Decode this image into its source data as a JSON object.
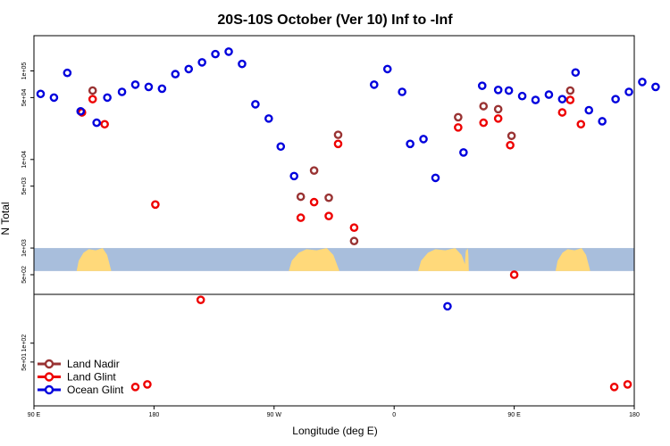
{
  "chart_data": {
    "type": "scatter",
    "title": "20S-10S October (Ver 10)   Inf to -Inf",
    "xlabel": "Longitude (deg E)",
    "ylabel": "N Total",
    "yscale": "log",
    "xlim": [
      90,
      540
    ],
    "x_ticks": [
      {
        "value": 90,
        "label": "90 E"
      },
      {
        "value": 180,
        "label": "180"
      },
      {
        "value": 270,
        "label": "90 W"
      },
      {
        "value": 360,
        "label": "0"
      },
      {
        "value": 450,
        "label": "90 E"
      },
      {
        "value": 540,
        "label": "180"
      }
    ],
    "upper_panel": {
      "ylim": [
        300,
        250000
      ],
      "y_ticks": [
        {
          "value": 500,
          "label": "5e+02"
        },
        {
          "value": 1000,
          "label": "1e+03"
        },
        {
          "value": 5000,
          "label": "5e+03"
        },
        {
          "value": 10000,
          "label": "1e+04"
        },
        {
          "value": 50000,
          "label": "5e+04"
        },
        {
          "value": 100000,
          "label": "1e+05"
        }
      ]
    },
    "lower_panel": {
      "ylim": [
        10,
        600
      ],
      "y_ticks": [
        {
          "value": 50,
          "label": "5e+01"
        },
        {
          "value": 100,
          "label": "1e+02"
        }
      ]
    },
    "land_mask_band": {
      "y_top": 1000,
      "y_bottom": 550,
      "ocean_color": "#a8bedc",
      "land_color": "#ffd97a"
    },
    "land_segments": [
      {
        "x_start": 122,
        "x_end": 148
      },
      {
        "x_start": 281,
        "x_end": 319
      },
      {
        "x_start": 378,
        "x_end": 415
      },
      {
        "x_start": 413,
        "x_end": 416
      },
      {
        "x_start": 481,
        "x_end": 507
      }
    ],
    "legend": {
      "placement": "bottom-left"
    },
    "series": [
      {
        "name": "Land Nadir",
        "color": "#993333",
        "upper": [
          {
            "x": 134,
            "y": 60000
          },
          {
            "x": 318,
            "y": 19000
          },
          {
            "x": 290,
            "y": 3800
          },
          {
            "x": 300,
            "y": 7500
          },
          {
            "x": 311,
            "y": 3700
          },
          {
            "x": 330,
            "y": 1200
          },
          {
            "x": 408,
            "y": 30000
          },
          {
            "x": 427,
            "y": 40000
          },
          {
            "x": 438,
            "y": 37000
          },
          {
            "x": 448,
            "y": 18500
          },
          {
            "x": 492,
            "y": 60000
          }
        ],
        "lower": []
      },
      {
        "name": "Land Glint",
        "color": "#ee0000",
        "upper": [
          {
            "x": 126,
            "y": 34000
          },
          {
            "x": 134,
            "y": 48000
          },
          {
            "x": 143,
            "y": 25000
          },
          {
            "x": 181,
            "y": 3100
          },
          {
            "x": 290,
            "y": 2200
          },
          {
            "x": 300,
            "y": 3300
          },
          {
            "x": 311,
            "y": 2300
          },
          {
            "x": 318,
            "y": 15000
          },
          {
            "x": 330,
            "y": 1700
          },
          {
            "x": 408,
            "y": 23000
          },
          {
            "x": 427,
            "y": 26000
          },
          {
            "x": 438,
            "y": 29000
          },
          {
            "x": 447,
            "y": 14500
          },
          {
            "x": 450,
            "y": 500
          },
          {
            "x": 215,
            "y": 260
          },
          {
            "x": 486,
            "y": 34000
          },
          {
            "x": 492,
            "y": 47000
          },
          {
            "x": 500,
            "y": 25000
          }
        ],
        "lower": [
          {
            "x": 166,
            "y": 20
          },
          {
            "x": 175,
            "y": 22
          },
          {
            "x": 525,
            "y": 20
          },
          {
            "x": 535,
            "y": 22
          }
        ]
      },
      {
        "name": "Ocean Glint",
        "color": "#0000dd",
        "upper": [
          {
            "x": 95,
            "y": 55000
          },
          {
            "x": 105,
            "y": 50000
          },
          {
            "x": 115,
            "y": 95000
          },
          {
            "x": 125,
            "y": 35000
          },
          {
            "x": 137,
            "y": 26000
          },
          {
            "x": 145,
            "y": 50000
          },
          {
            "x": 156,
            "y": 58000
          },
          {
            "x": 166,
            "y": 70000
          },
          {
            "x": 176,
            "y": 66000
          },
          {
            "x": 186,
            "y": 63000
          },
          {
            "x": 196,
            "y": 92000
          },
          {
            "x": 206,
            "y": 105000
          },
          {
            "x": 216,
            "y": 125000
          },
          {
            "x": 226,
            "y": 155000
          },
          {
            "x": 236,
            "y": 165000
          },
          {
            "x": 246,
            "y": 120000
          },
          {
            "x": 256,
            "y": 42000
          },
          {
            "x": 266,
            "y": 29000
          },
          {
            "x": 275,
            "y": 14000
          },
          {
            "x": 285,
            "y": 6500
          },
          {
            "x": 345,
            "y": 70000
          },
          {
            "x": 355,
            "y": 105000
          },
          {
            "x": 366,
            "y": 58000
          },
          {
            "x": 372,
            "y": 15000
          },
          {
            "x": 382,
            "y": 17000
          },
          {
            "x": 391,
            "y": 6200
          },
          {
            "x": 400,
            "y": 220
          },
          {
            "x": 412,
            "y": 12000
          },
          {
            "x": 426,
            "y": 68000
          },
          {
            "x": 438,
            "y": 61000
          },
          {
            "x": 446,
            "y": 60000
          },
          {
            "x": 456,
            "y": 52000
          },
          {
            "x": 466,
            "y": 47000
          },
          {
            "x": 476,
            "y": 54000
          },
          {
            "x": 486,
            "y": 48000
          },
          {
            "x": 496,
            "y": 96000
          },
          {
            "x": 506,
            "y": 36000
          },
          {
            "x": 516,
            "y": 27000
          },
          {
            "x": 526,
            "y": 48000
          },
          {
            "x": 536,
            "y": 58000
          },
          {
            "x": 546,
            "y": 75000
          },
          {
            "x": 556,
            "y": 66000
          }
        ],
        "lower": []
      }
    ]
  }
}
